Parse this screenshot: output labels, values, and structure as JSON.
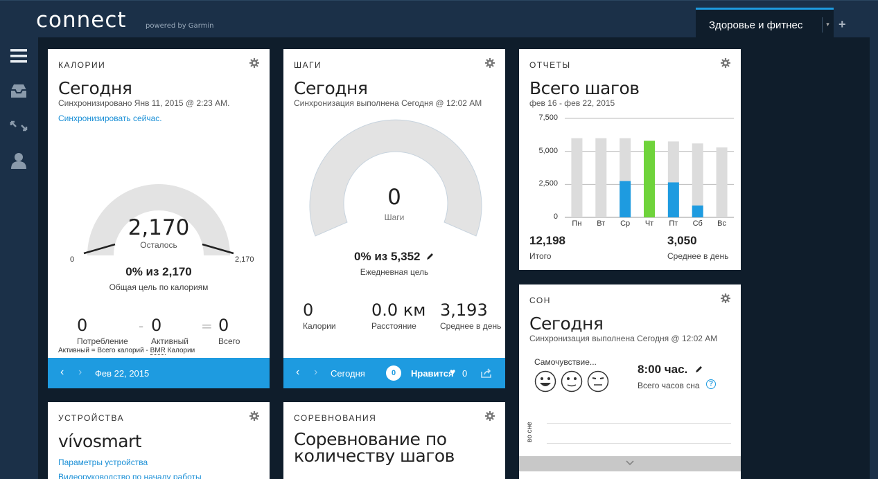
{
  "header": {
    "logo": "connect",
    "powered": "powered by Garmin",
    "tab_label": "Здоровье и фитнес",
    "tab_caret": "▾",
    "add_label": "+"
  },
  "sidebar": {
    "items": [
      {
        "icon": "menu-icon"
      },
      {
        "icon": "inbox-icon"
      },
      {
        "icon": "connections-icon"
      },
      {
        "icon": "profile-icon"
      }
    ]
  },
  "calories": {
    "header": "КАЛОРИИ",
    "title": "Сегодня",
    "sync_text": "Синхронизировано Янв 11, 2015 @ 2:23 AM.",
    "sync_link": "Синхронизировать сейчас.",
    "gauge_value": "2,170",
    "gauge_label": "Осталось",
    "gauge_min": "0",
    "gauge_max": "2,170",
    "progress_text": "0% из 2,170",
    "goal_label": "Общая цель по калориям",
    "consumed_value": "0",
    "consumed_label": "Потребление",
    "minus": "-",
    "active_value": "0",
    "active_label": "Активный",
    "equals": "=",
    "total_value": "0",
    "total_label": "Всего",
    "formula_prefix": "Активный = Всего калорий - ",
    "formula_bmr": "BMR",
    "formula_suffix": " Калории",
    "date": "Фев 22, 2015"
  },
  "steps": {
    "header": "ШАГИ",
    "title": "Сегодня",
    "sync_text": "Синхронизация выполнена Сегодня @ 12:02 AM",
    "gauge_value": "0",
    "gauge_label": "Шаги",
    "progress_text": "0% из 5,352",
    "goal_label": "Ежедневная цель",
    "calories_value": "0",
    "calories_label": "Калории",
    "distance_value": "0.0 км",
    "distance_label": "Расстояние",
    "avg_value": "3,193",
    "avg_label": "Среднее в день",
    "date": "Сегодня",
    "comments_count": "0",
    "like_label": "Нравится",
    "likes_count": "0"
  },
  "reports": {
    "header": "ОТЧЕТЫ",
    "title": "Всего шагов",
    "range": "фев 16 - фев 22, 2015",
    "total_value": "12,198",
    "total_label": "Итого",
    "avg_value": "3,050",
    "avg_label": "Среднее в день"
  },
  "chart_data": {
    "type": "bar",
    "categories": [
      "Пн",
      "Вт",
      "Ср",
      "Чт",
      "Пт",
      "Сб",
      "Вс"
    ],
    "series": [
      {
        "values": [
          0,
          0,
          2750,
          5800,
          2650,
          900,
          0
        ]
      }
    ],
    "goal_values": [
      6000,
      6000,
      6000,
      5800,
      5750,
      5600,
      5300
    ],
    "y_ticks": [
      "0",
      "2,500",
      "5,000",
      "7,500"
    ],
    "ylim": [
      0,
      7500
    ],
    "grid": true,
    "colors": {
      "goal": "#dcdcdc",
      "partial": "#1e9be0",
      "met": "#6fd33b"
    }
  },
  "sleep": {
    "header": "СОН",
    "title": "Сегодня",
    "sync_text": "Синхронизация выполнена Сегодня @ 12:02 AM",
    "mood_label": "Самочувствие...",
    "hours_value": "8:00 час.",
    "hours_label": "Всего часов сна",
    "help": "?",
    "axis_label": "во сне"
  },
  "devices": {
    "header": "УСТРОЙСТВА",
    "title": "vívosmart",
    "link1": "Параметры устройства",
    "link2": "Видеоруководство по началу работы"
  },
  "challenges": {
    "header": "СОРЕВНОВАНИЯ",
    "title_line1": "Соревнование по",
    "title_line2": "количеству шагов"
  },
  "colors": {
    "accent": "#1e9be0",
    "topbar": "#1b3048",
    "background": "#0f1d2b",
    "green": "#6fd33b"
  }
}
